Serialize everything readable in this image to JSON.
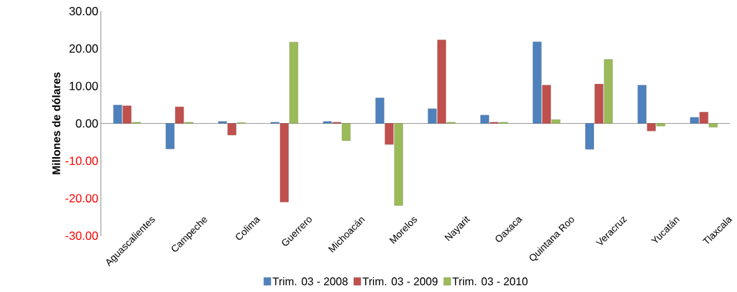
{
  "chart_data": {
    "type": "bar",
    "ylabel": "Millones de dólares",
    "categories": [
      "Aguascalientes",
      "Campeche",
      "Colima",
      "Guerrero",
      "Michoacán",
      "Morelos",
      "Nayarit",
      "Oaxaca",
      "Quintana Roo",
      "Veracruz",
      "Yucatán",
      "Tlaxcala"
    ],
    "series": [
      {
        "name": "Trim. 03 - 2008",
        "color": "#4f81bd",
        "values": [
          4.9,
          -6.8,
          0.5,
          0.3,
          0.5,
          6.8,
          3.9,
          2.2,
          21.8,
          -6.9,
          10.2,
          1.6
        ]
      },
      {
        "name": "Trim. 03 - 2009",
        "color": "#c0504d",
        "values": [
          4.7,
          4.4,
          -3.1,
          -21.0,
          0.3,
          -5.6,
          22.3,
          0.3,
          10.2,
          10.5,
          -2.0,
          3.0
        ]
      },
      {
        "name": "Trim. 03 - 2010",
        "color": "#9bbb59",
        "values": [
          0.3,
          0.3,
          0.2,
          21.7,
          -4.6,
          -21.9,
          0.3,
          0.3,
          1.0,
          17.1,
          -0.7,
          -1.0
        ]
      }
    ],
    "ylim": [
      -30,
      30
    ],
    "yticks": [
      {
        "value": -30,
        "label": "-30.00"
      },
      {
        "value": -20,
        "label": "-20.00"
      },
      {
        "value": -10,
        "label": "-10.00"
      },
      {
        "value": 0,
        "label": "0.00"
      },
      {
        "value": 10,
        "label": "10.00"
      },
      {
        "value": 20,
        "label": "20.00"
      },
      {
        "value": 30,
        "label": "30.00"
      }
    ],
    "legend": "bottom"
  }
}
